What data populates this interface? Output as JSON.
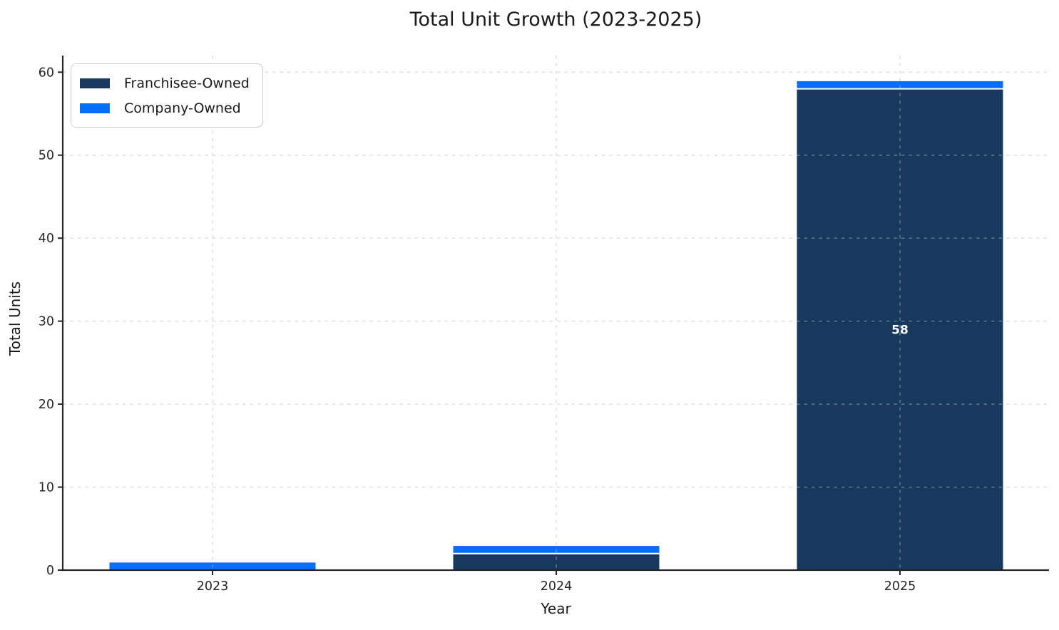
{
  "chart_data": {
    "type": "bar",
    "stacked": true,
    "title": "Total Unit Growth (2023-2025)",
    "xlabel": "Year",
    "ylabel": "Total Units",
    "categories": [
      "2023",
      "2024",
      "2025"
    ],
    "series": [
      {
        "name": "Franchisee-Owned",
        "color": "#17395E",
        "values": [
          0,
          2,
          58
        ],
        "bar_labels": [
          "",
          "",
          "58"
        ]
      },
      {
        "name": "Company-Owned",
        "color": "#0A6CFF",
        "values": [
          1,
          1,
          1
        ],
        "bar_labels": [
          "",
          "",
          ""
        ]
      }
    ],
    "totals": [
      1,
      3,
      59
    ],
    "ylim": [
      0,
      62
    ],
    "yticks": [
      0,
      10,
      20,
      30,
      40,
      50,
      60
    ],
    "legend_position": "upper left",
    "grid": "dashed horizontal and vertical",
    "bar_label_color": "#FFFFFF",
    "bar_edge_color": "#FFFFFF",
    "axis_color": "#262626",
    "grid_color": "#BDBDBD"
  }
}
